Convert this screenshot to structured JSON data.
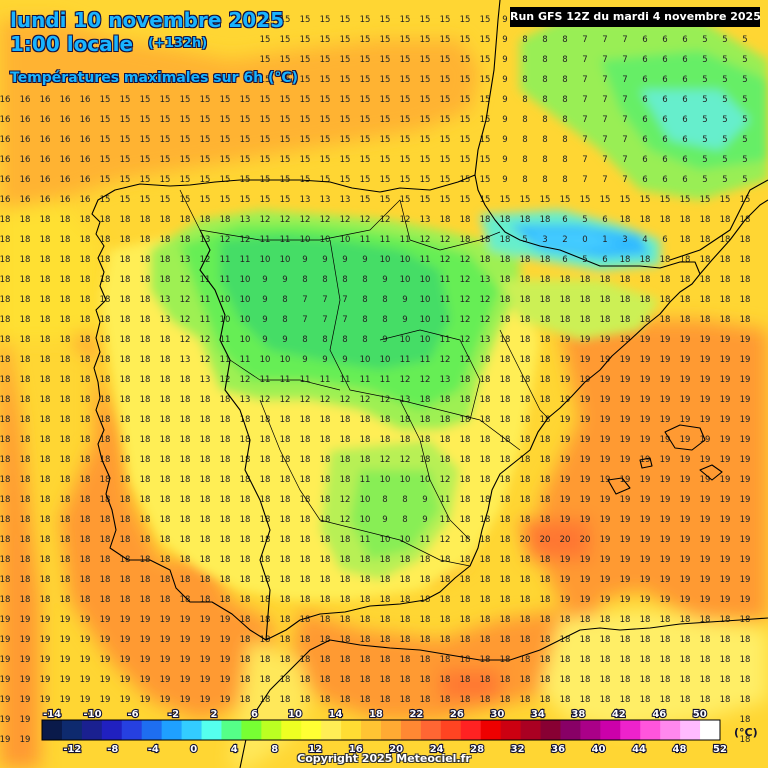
{
  "header": {
    "date_line": "lundi 10 novembre 2025",
    "time_line": "1:00 locale",
    "lead_time": "(+132h)",
    "parameter": "Températures maximales sur 6h (°C)",
    "run_info": "Run GFS 12Z du mardi 4 novembre 2025"
  },
  "legend": {
    "unit": "(°C)",
    "min": -15,
    "max": 52,
    "top_labels": [
      "-14",
      "-10",
      "-6",
      "-2",
      "2",
      "6",
      "10",
      "14",
      "18",
      "22",
      "26",
      "30",
      "34",
      "38",
      "42",
      "46",
      "50"
    ],
    "bottom_labels": [
      "-12",
      "-8",
      "-4",
      "0",
      "4",
      "8",
      "12",
      "16",
      "20",
      "24",
      "28",
      "32",
      "36",
      "40",
      "44",
      "48",
      "52"
    ]
  },
  "footer": {
    "copyright": "Copyright 2025 Meteociel.fr"
  },
  "colors": {
    "label_text": "#19b4ff",
    "run_box": "#000000",
    "warm_orange": "#ff9933",
    "mid_yellow": "#ffdd33",
    "cool_green": "#66ee66",
    "cold_blue": "#33aaff"
  }
}
